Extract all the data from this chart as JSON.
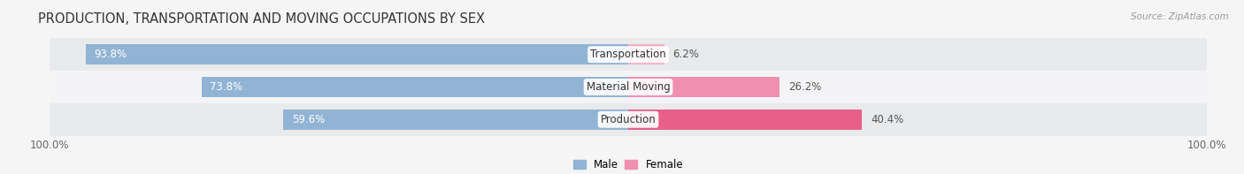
{
  "title": "PRODUCTION, TRANSPORTATION AND MOVING OCCUPATIONS BY SEX",
  "source": "Source: ZipAtlas.com",
  "categories": [
    "Transportation",
    "Material Moving",
    "Production"
  ],
  "male_pct": [
    93.8,
    73.8,
    59.6
  ],
  "female_pct": [
    6.2,
    26.2,
    40.4
  ],
  "male_color": "#92b4d4",
  "female_color": "#f090b0",
  "female_color_prod": "#e8608a",
  "female_colors": [
    "#f4aec8",
    "#f090b0",
    "#e8608a"
  ],
  "row_color_even": "#e8eaec",
  "row_color_odd": "#f4f4f6",
  "bg_color": "#f5f5f5",
  "title_fontsize": 10.5,
  "label_fontsize": 8.5,
  "pct_fontsize": 8.5,
  "tick_fontsize": 8.5,
  "bar_height": 0.62
}
